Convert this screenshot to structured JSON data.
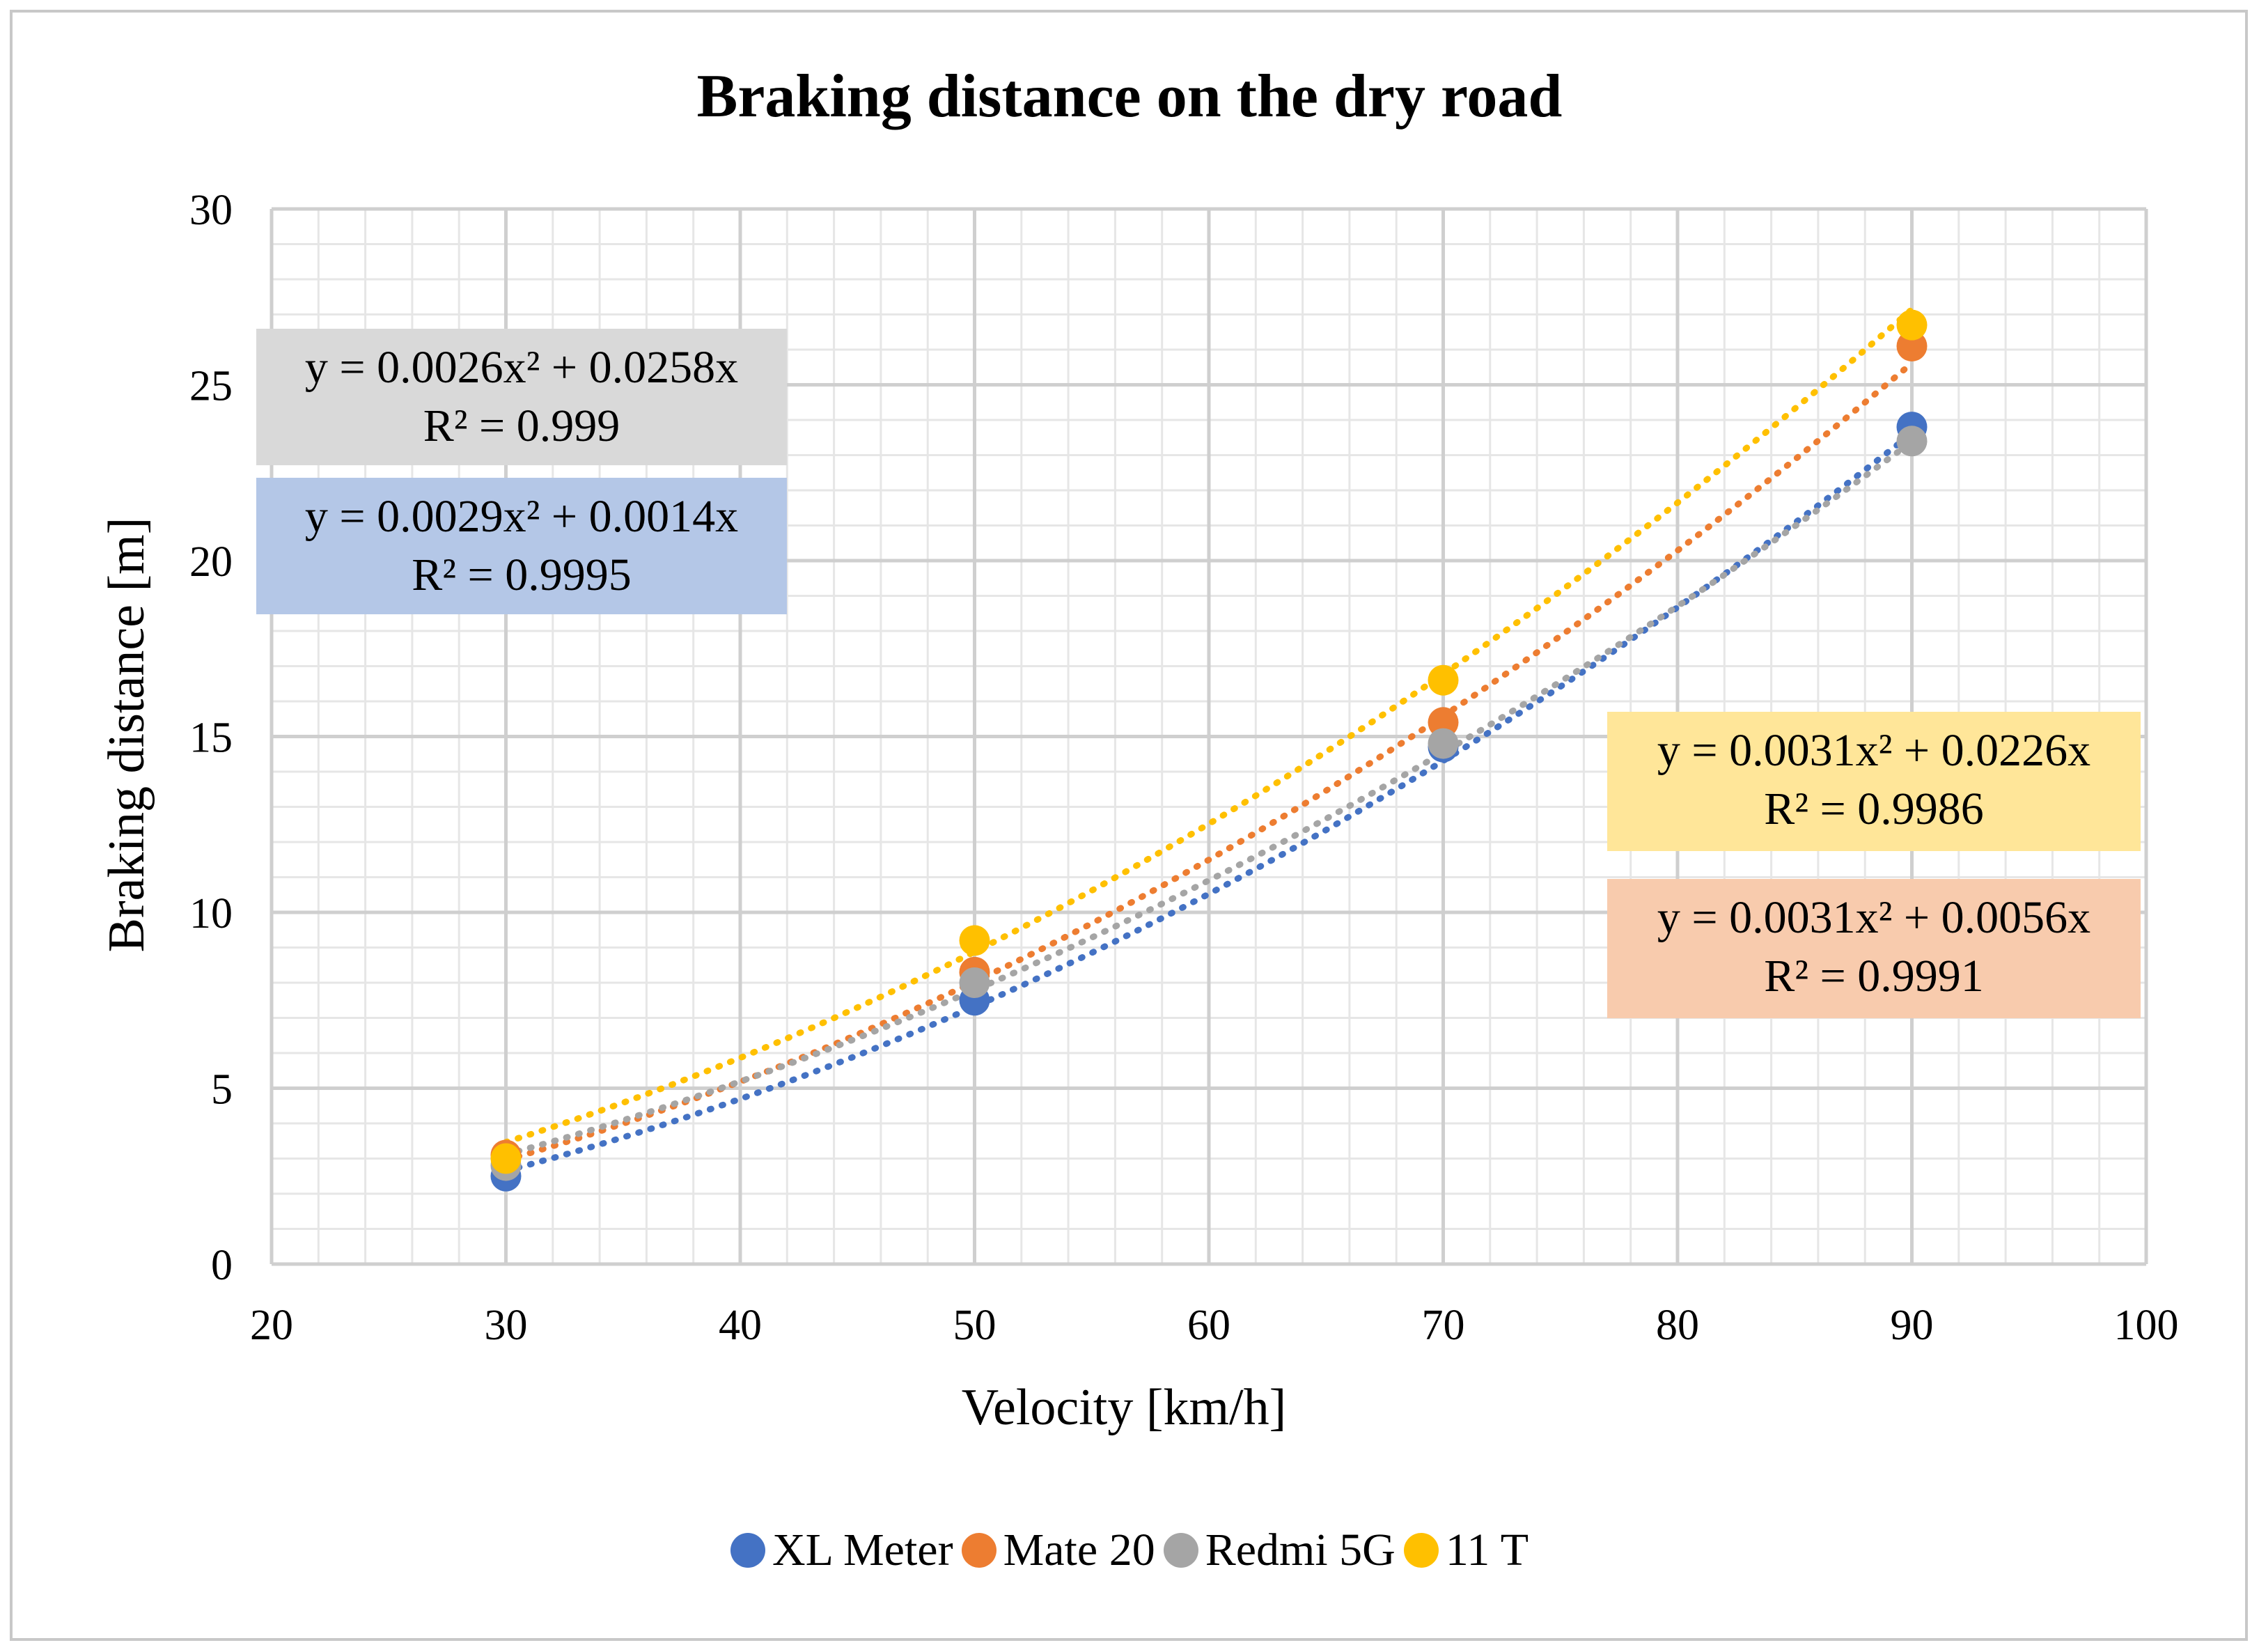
{
  "chart_data": {
    "type": "scatter",
    "title": "Braking distance on the dry road",
    "xlabel": "Velocity [km/h]",
    "ylabel": "Braking distance [m]",
    "xlim": [
      20,
      100
    ],
    "ylim": [
      0,
      30
    ],
    "xticks": [
      20,
      30,
      40,
      50,
      60,
      70,
      80,
      90,
      100
    ],
    "yticks": [
      0,
      5,
      10,
      15,
      20,
      25,
      30
    ],
    "grid": true,
    "legend_position": "bottom",
    "series": [
      {
        "name": "XL Meter",
        "color": "#4472C4",
        "x": [
          30,
          50,
          70,
          90
        ],
        "y": [
          2.5,
          7.5,
          14.7,
          23.8
        ],
        "trendline": {
          "type": "poly2",
          "a": 0.0029,
          "b": 0.0014,
          "equation": "y = 0.0029x² + 0.0014x",
          "r2": "R² = 0.9995",
          "label_color": "#B4C7E7"
        }
      },
      {
        "name": "Mate 20",
        "color": "#ED7D31",
        "x": [
          30,
          50,
          70,
          90
        ],
        "y": [
          3.1,
          8.3,
          15.4,
          26.1
        ],
        "trendline": {
          "type": "poly2",
          "a": 0.0031,
          "b": 0.0056,
          "equation": "y = 0.0031x² + 0.0056x",
          "r2": "R² = 0.9991",
          "label_color": "#F8CBAD"
        }
      },
      {
        "name": "Redmi 5G",
        "color": "#A5A5A5",
        "x": [
          30,
          50,
          70,
          90
        ],
        "y": [
          2.8,
          8.0,
          14.8,
          23.4
        ],
        "trendline": {
          "type": "poly2",
          "a": 0.0026,
          "b": 0.0258,
          "equation": "y = 0.0026x² + 0.0258x",
          "r2": "R² = 0.999",
          "label_color": "#D9D9D9"
        }
      },
      {
        "name": "11 T",
        "color": "#FFC000",
        "x": [
          30,
          50,
          70,
          90
        ],
        "y": [
          3.0,
          9.2,
          16.6,
          26.7
        ],
        "trendline": {
          "type": "poly2",
          "a": 0.0031,
          "b": 0.0226,
          "equation": "y = 0.0031x² + 0.0226x",
          "r2": "R² = 0.9986",
          "label_color": "#FFE699"
        }
      }
    ]
  }
}
